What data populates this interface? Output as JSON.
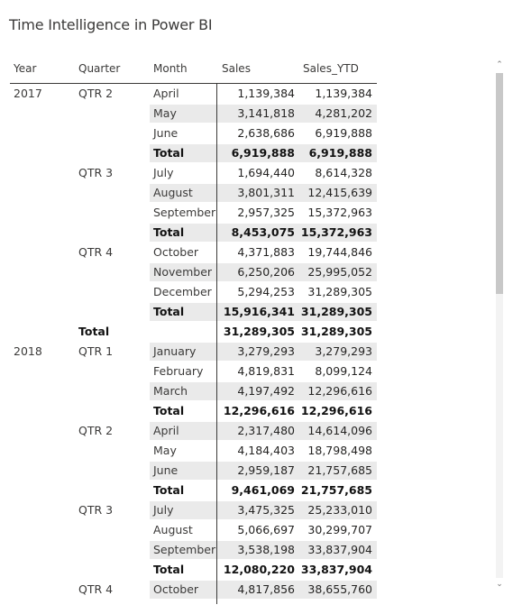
{
  "title": "Time Intelligence in Power BI",
  "columns": {
    "year": "Year",
    "quarter": "Quarter",
    "month": "Month",
    "sales": "Sales",
    "ytd": "Sales_YTD"
  },
  "rows": [
    {
      "type": "m",
      "year": "2017",
      "quarter": "QTR 2",
      "month": "April",
      "sales": "1,139,384",
      "ytd": "1,139,384",
      "shade": false
    },
    {
      "type": "m",
      "year": "",
      "quarter": "",
      "month": "May",
      "sales": "3,141,818",
      "ytd": "4,281,202",
      "shade": true
    },
    {
      "type": "m",
      "year": "",
      "quarter": "",
      "month": "June",
      "sales": "2,638,686",
      "ytd": "6,919,888",
      "shade": false
    },
    {
      "type": "sub",
      "year": "",
      "quarter": "",
      "month": "Total",
      "sales": "6,919,888",
      "ytd": "6,919,888",
      "shade": true
    },
    {
      "type": "m",
      "year": "",
      "quarter": "QTR 3",
      "month": "July",
      "sales": "1,694,440",
      "ytd": "8,614,328",
      "shade": false
    },
    {
      "type": "m",
      "year": "",
      "quarter": "",
      "month": "August",
      "sales": "3,801,311",
      "ytd": "12,415,639",
      "shade": true
    },
    {
      "type": "m",
      "year": "",
      "quarter": "",
      "month": "September",
      "sales": "2,957,325",
      "ytd": "15,372,963",
      "shade": false
    },
    {
      "type": "sub",
      "year": "",
      "quarter": "",
      "month": "Total",
      "sales": "8,453,075",
      "ytd": "15,372,963",
      "shade": true
    },
    {
      "type": "m",
      "year": "",
      "quarter": "QTR 4",
      "month": "October",
      "sales": "4,371,883",
      "ytd": "19,744,846",
      "shade": false
    },
    {
      "type": "m",
      "year": "",
      "quarter": "",
      "month": "November",
      "sales": "6,250,206",
      "ytd": "25,995,052",
      "shade": true
    },
    {
      "type": "m",
      "year": "",
      "quarter": "",
      "month": "December",
      "sales": "5,294,253",
      "ytd": "31,289,305",
      "shade": false
    },
    {
      "type": "sub",
      "year": "",
      "quarter": "",
      "month": "Total",
      "sales": "15,916,341",
      "ytd": "31,289,305",
      "shade": true
    },
    {
      "type": "qtot",
      "year": "",
      "quarter": "Total",
      "month": "",
      "sales": "31,289,305",
      "ytd": "31,289,305",
      "shade": false
    },
    {
      "type": "m",
      "year": "2018",
      "quarter": "QTR 1",
      "month": "January",
      "sales": "3,279,293",
      "ytd": "3,279,293",
      "shade": true
    },
    {
      "type": "m",
      "year": "",
      "quarter": "",
      "month": "February",
      "sales": "4,819,831",
      "ytd": "8,099,124",
      "shade": false
    },
    {
      "type": "m",
      "year": "",
      "quarter": "",
      "month": "March",
      "sales": "4,197,492",
      "ytd": "12,296,616",
      "shade": true
    },
    {
      "type": "sub",
      "year": "",
      "quarter": "",
      "month": "Total",
      "sales": "12,296,616",
      "ytd": "12,296,616",
      "shade": false
    },
    {
      "type": "m",
      "year": "",
      "quarter": "QTR 2",
      "month": "April",
      "sales": "2,317,480",
      "ytd": "14,614,096",
      "shade": true
    },
    {
      "type": "m",
      "year": "",
      "quarter": "",
      "month": "May",
      "sales": "4,184,403",
      "ytd": "18,798,498",
      "shade": false
    },
    {
      "type": "m",
      "year": "",
      "quarter": "",
      "month": "June",
      "sales": "2,959,187",
      "ytd": "21,757,685",
      "shade": true
    },
    {
      "type": "sub",
      "year": "",
      "quarter": "",
      "month": "Total",
      "sales": "9,461,069",
      "ytd": "21,757,685",
      "shade": false
    },
    {
      "type": "m",
      "year": "",
      "quarter": "QTR 3",
      "month": "July",
      "sales": "3,475,325",
      "ytd": "25,233,010",
      "shade": true
    },
    {
      "type": "m",
      "year": "",
      "quarter": "",
      "month": "August",
      "sales": "5,066,697",
      "ytd": "30,299,707",
      "shade": false
    },
    {
      "type": "m",
      "year": "",
      "quarter": "",
      "month": "September",
      "sales": "3,538,198",
      "ytd": "33,837,904",
      "shade": true
    },
    {
      "type": "sub",
      "year": "",
      "quarter": "",
      "month": "Total",
      "sales": "12,080,220",
      "ytd": "33,837,904",
      "shade": false
    },
    {
      "type": "m",
      "year": "",
      "quarter": "QTR 4",
      "month": "October",
      "sales": "4,817,856",
      "ytd": "38,655,760",
      "shade": true
    }
  ],
  "scrollbar": {
    "up_icon": "chevron-up-icon",
    "down_icon": "chevron-down-icon"
  }
}
